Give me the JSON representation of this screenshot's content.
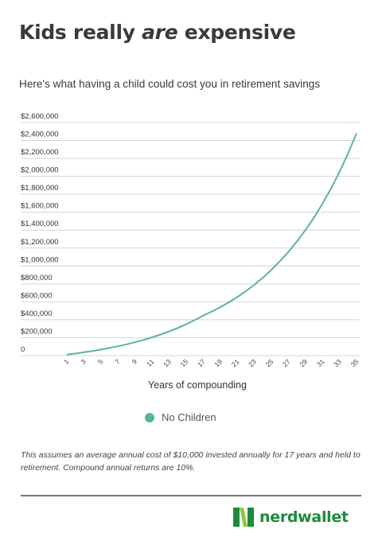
{
  "header": {
    "title_pre": "Kids really ",
    "title_em": "are",
    "title_post": " expensive",
    "subtitle": "Here's what having a child could cost you in retirement savings"
  },
  "chart_data": {
    "type": "line",
    "title": "Kids really are expensive",
    "subtitle": "Here's what having a child could cost you in retirement savings",
    "xlabel": "Years of compounding",
    "ylabel": "",
    "x": [
      1,
      2,
      3,
      4,
      5,
      6,
      7,
      8,
      9,
      10,
      11,
      12,
      13,
      14,
      15,
      16,
      17,
      18,
      19,
      20,
      21,
      22,
      23,
      24,
      25,
      26,
      27,
      28,
      29,
      30,
      31,
      32,
      33,
      34,
      35
    ],
    "x_tick_labels": [
      "1",
      "3",
      "5",
      "7",
      "9",
      "11",
      "13",
      "15",
      "17",
      "19",
      "21",
      "23",
      "25",
      "27",
      "29",
      "31",
      "33",
      "35"
    ],
    "y_tick_labels": [
      "0",
      "$200,000",
      "$400,000",
      "$600,000",
      "$800,000",
      "$1,000,000",
      "$1,200,000",
      "$1,400,000",
      "$1,600,000",
      "$1,800,000",
      "$2,000,000",
      "$2,200,000",
      "$2,400,000",
      "$2,600,000"
    ],
    "ylim": [
      0,
      2600000
    ],
    "grid": true,
    "legend_position": "bottom",
    "series": [
      {
        "name": "No Children",
        "color": "#5ab496",
        "values": [
          11000,
          23000,
          37000,
          51000,
          67000,
          85000,
          104000,
          126000,
          149000,
          175000,
          204000,
          235000,
          270000,
          308000,
          350000,
          396000,
          446000,
          491000,
          540000,
          594000,
          653000,
          718000,
          790000,
          869000,
          956000,
          1052000,
          1157000,
          1273000,
          1400000,
          1540000,
          1694000,
          1863000,
          2049000,
          2254000,
          2480000
        ]
      }
    ]
  },
  "footnote": "This assumes an average annual cost of $10,000 invested annually for 17 years and held to retirement. Compound annual returns are 10%.",
  "brand": {
    "name": "nerdwallet",
    "mark_letter": "N",
    "mark_color_dark": "#1e8a3c",
    "mark_color_light": "#8cc63f"
  }
}
